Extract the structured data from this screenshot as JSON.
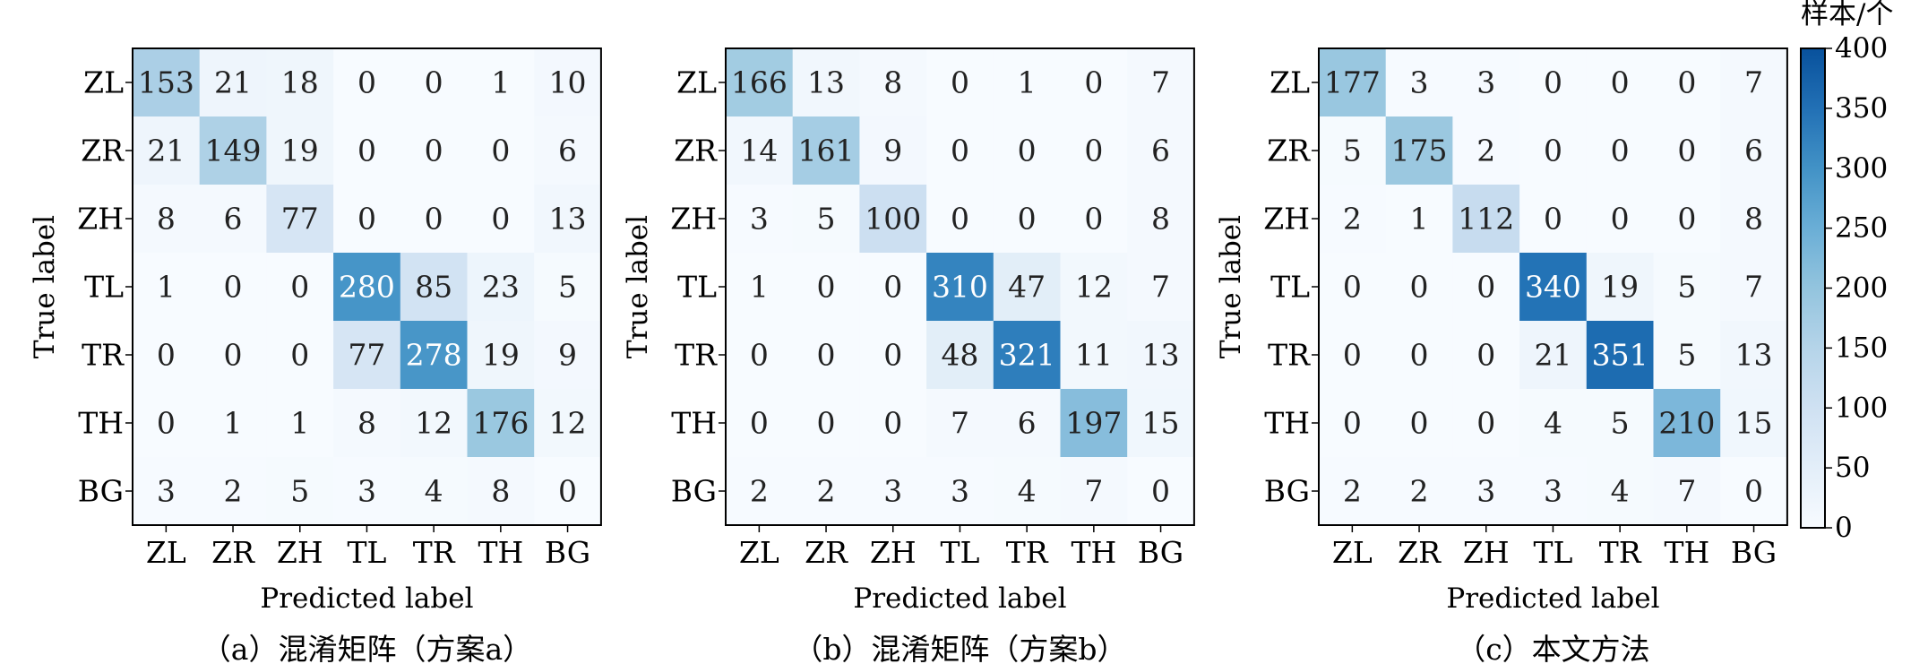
{
  "chart_data": [
    {
      "type": "heatmap",
      "caption": "（a）混淆矩阵（方案a）",
      "xlabel": "Predicted label",
      "ylabel": "True label",
      "x_categories": [
        "ZL",
        "ZR",
        "ZH",
        "TL",
        "TR",
        "TH",
        "BG"
      ],
      "y_categories": [
        "ZL",
        "ZR",
        "ZH",
        "TL",
        "TR",
        "TH",
        "BG"
      ],
      "values": [
        [
          153,
          21,
          18,
          0,
          0,
          1,
          10
        ],
        [
          21,
          149,
          19,
          0,
          0,
          0,
          6
        ],
        [
          8,
          6,
          77,
          0,
          0,
          0,
          13
        ],
        [
          1,
          0,
          0,
          280,
          85,
          23,
          5
        ],
        [
          0,
          0,
          0,
          77,
          278,
          19,
          9
        ],
        [
          0,
          1,
          1,
          8,
          12,
          176,
          12
        ],
        [
          3,
          2,
          5,
          3,
          4,
          8,
          0
        ]
      ]
    },
    {
      "type": "heatmap",
      "caption": "（b）混淆矩阵（方案b）",
      "xlabel": "Predicted label",
      "ylabel": "True label",
      "x_categories": [
        "ZL",
        "ZR",
        "ZH",
        "TL",
        "TR",
        "TH",
        "BG"
      ],
      "y_categories": [
        "ZL",
        "ZR",
        "ZH",
        "TL",
        "TR",
        "TH",
        "BG"
      ],
      "values": [
        [
          166,
          13,
          8,
          0,
          1,
          0,
          7
        ],
        [
          14,
          161,
          9,
          0,
          0,
          0,
          6
        ],
        [
          3,
          5,
          100,
          0,
          0,
          0,
          8
        ],
        [
          1,
          0,
          0,
          310,
          47,
          12,
          7
        ],
        [
          0,
          0,
          0,
          48,
          321,
          11,
          13
        ],
        [
          0,
          0,
          0,
          7,
          6,
          197,
          15
        ],
        [
          2,
          2,
          3,
          3,
          4,
          7,
          0
        ]
      ]
    },
    {
      "type": "heatmap",
      "caption": "（c）本文方法",
      "xlabel": "Predicted label",
      "ylabel": "True label",
      "x_categories": [
        "ZL",
        "ZR",
        "ZH",
        "TL",
        "TR",
        "TH",
        "BG"
      ],
      "y_categories": [
        "ZL",
        "ZR",
        "ZH",
        "TL",
        "TR",
        "TH",
        "BG"
      ],
      "values": [
        [
          177,
          3,
          3,
          0,
          0,
          0,
          7
        ],
        [
          5,
          175,
          2,
          0,
          0,
          0,
          6
        ],
        [
          2,
          1,
          112,
          0,
          0,
          0,
          8
        ],
        [
          0,
          0,
          0,
          340,
          19,
          5,
          7
        ],
        [
          0,
          0,
          0,
          21,
          351,
          5,
          13
        ],
        [
          0,
          0,
          0,
          4,
          5,
          210,
          15
        ],
        [
          2,
          2,
          3,
          3,
          4,
          7,
          0
        ]
      ]
    }
  ],
  "colorbar": {
    "title": "样本/个",
    "min": 0,
    "max": 400,
    "ticks": [
      0,
      50,
      100,
      150,
      200,
      250,
      300,
      350,
      400
    ],
    "colormap": "Blues",
    "color_low": "#f7fbff",
    "color_high": "#08519c"
  }
}
